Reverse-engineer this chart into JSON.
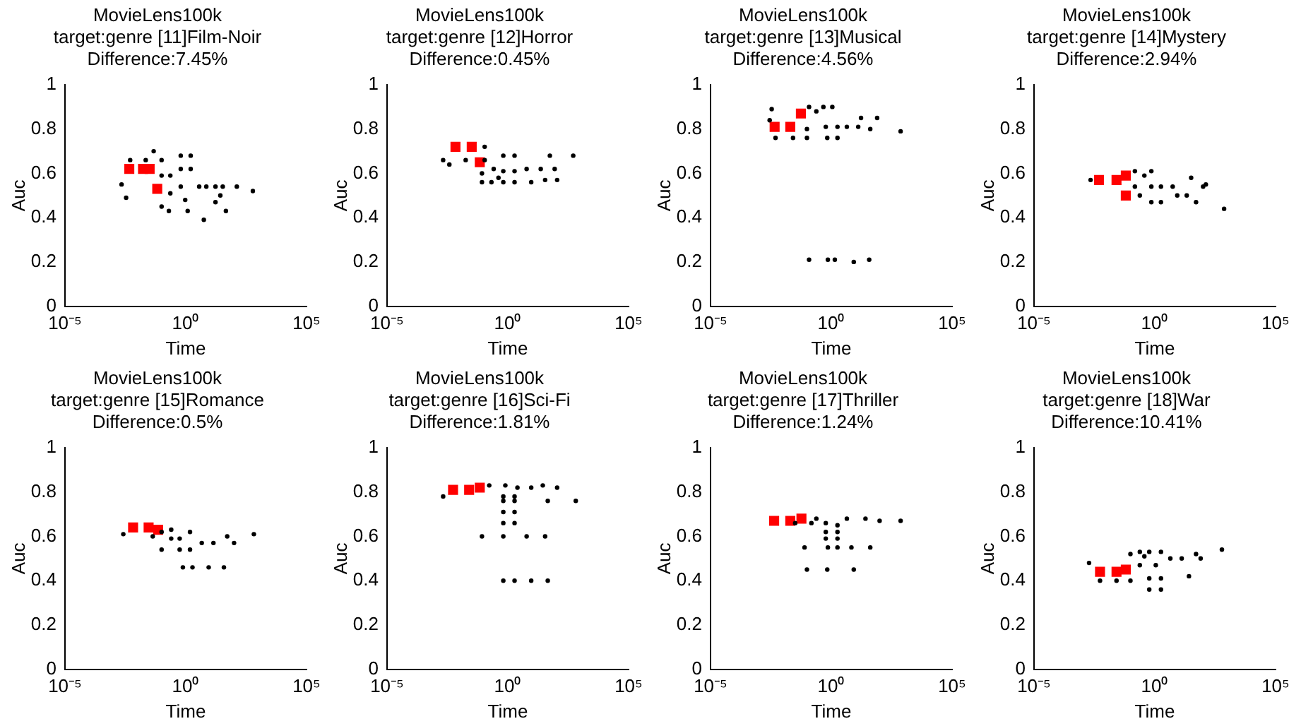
{
  "chart_data": [
    {
      "type": "scatter",
      "title": "MovieLens100k\ntarget:genre [11]Film-Noir\nDifference:7.45%",
      "xlabel": "Time",
      "ylabel": "Auc",
      "log": "x",
      "grid": false,
      "legend": false,
      "xlim": [
        1e-05,
        100000
      ],
      "xticks": [
        {
          "value": 1e-05,
          "label": "10⁻⁵"
        },
        {
          "value": 1,
          "label": "10⁰"
        },
        {
          "value": 100000,
          "label": "10⁵"
        }
      ],
      "ylim": [
        0,
        1
      ],
      "yticks": [
        0,
        0.2,
        0.4,
        0.6,
        0.8,
        1
      ],
      "series": [
        {
          "color": "#000000",
          "marker": "circle",
          "x": [
            0.0022,
            0.0034,
            0.005,
            0.022,
            0.047,
            0.1,
            0.1,
            0.23,
            0.23,
            0.1,
            0.2,
            0.62,
            0.62,
            1.6,
            1.6,
            0.62,
            0.95,
            1.2,
            3.6,
            7.1,
            17,
            34,
            130,
            600,
            5.6,
            17,
            46,
            27
          ],
          "values": [
            0.55,
            0.49,
            0.66,
            0.66,
            0.7,
            0.66,
            0.59,
            0.59,
            0.51,
            0.45,
            0.43,
            0.68,
            0.62,
            0.68,
            0.62,
            0.54,
            0.48,
            0.43,
            0.54,
            0.54,
            0.54,
            0.54,
            0.54,
            0.52,
            0.39,
            0.47,
            0.43,
            0.5
          ]
        },
        {
          "color": "#ff0000",
          "marker": "square",
          "x": [
            0.0046,
            0.017,
            0.032,
            0.066
          ],
          "values": [
            0.62,
            0.62,
            0.62,
            0.53
          ]
        }
      ]
    },
    {
      "type": "scatter",
      "title": "MovieLens100k\ntarget:genre [12]Horror\nDifference:0.45%",
      "xlabel": "Time",
      "ylabel": "Auc",
      "log": "x",
      "grid": false,
      "legend": false,
      "xlim": [
        1e-05,
        100000
      ],
      "xticks": [
        {
          "value": 1e-05,
          "label": "10⁻⁵"
        },
        {
          "value": 1,
          "label": "10⁰"
        },
        {
          "value": 100000,
          "label": "10⁵"
        }
      ],
      "ylim": [
        0,
        1
      ],
      "yticks": [
        0,
        0.2,
        0.4,
        0.6,
        0.8,
        1
      ],
      "series": [
        {
          "color": "#000000",
          "marker": "circle",
          "x": [
            0.0021,
            0.0038,
            0.018,
            0.11,
            0.11,
            0.085,
            0.085,
            0.21,
            0.26,
            0.65,
            0.65,
            0.65,
            1.9,
            1.9,
            1.9,
            6,
            23,
            55,
            87,
            35,
            110,
            510,
            9.3,
            0.41
          ],
          "values": [
            0.66,
            0.64,
            0.66,
            0.72,
            0.66,
            0.6,
            0.56,
            0.56,
            0.62,
            0.68,
            0.61,
            0.56,
            0.68,
            0.61,
            0.56,
            0.62,
            0.62,
            0.68,
            0.62,
            0.57,
            0.57,
            0.68,
            0.56,
            0.58
          ]
        },
        {
          "color": "#ff0000",
          "marker": "square",
          "x": [
            0.0068,
            0.032,
            0.069
          ],
          "values": [
            0.72,
            0.72,
            0.65
          ]
        }
      ]
    },
    {
      "type": "scatter",
      "title": "MovieLens100k\ntarget:genre [13]Musical\nDifference:4.56%",
      "xlabel": "Time",
      "ylabel": "Auc",
      "log": "x",
      "grid": false,
      "legend": false,
      "xlim": [
        1e-05,
        100000
      ],
      "xticks": [
        {
          "value": 1e-05,
          "label": "10⁻⁵"
        },
        {
          "value": 1,
          "label": "10⁰"
        },
        {
          "value": 100000,
          "label": "10⁵"
        }
      ],
      "ylim": [
        0,
        1
      ],
      "yticks": [
        0,
        0.2,
        0.4,
        0.6,
        0.8,
        1
      ],
      "series": [
        {
          "color": "#000000",
          "marker": "circle",
          "x": [
            0.0034,
            0.0049,
            0.026,
            0.098,
            0.12,
            0.24,
            0.47,
            1.1,
            0.098,
            0.59,
            1.8,
            4.4,
            13,
            41,
            17,
            79,
            740,
            0.68,
            1.8,
            0.12,
            0.72,
            1.4,
            8.5,
            37,
            0.0028
          ],
          "values": [
            0.89,
            0.76,
            0.76,
            0.76,
            0.9,
            0.88,
            0.9,
            0.9,
            0.8,
            0.81,
            0.81,
            0.81,
            0.81,
            0.8,
            0.85,
            0.85,
            0.79,
            0.76,
            0.76,
            0.21,
            0.21,
            0.21,
            0.2,
            0.21,
            0.84
          ]
        },
        {
          "color": "#ff0000",
          "marker": "square",
          "x": [
            0.0045,
            0.02,
            0.055
          ],
          "values": [
            0.81,
            0.81,
            0.87
          ]
        }
      ]
    },
    {
      "type": "scatter",
      "title": "MovieLens100k\ntarget:genre [14]Mystery\nDifference:2.94%",
      "xlabel": "Time",
      "ylabel": "Auc",
      "log": "x",
      "grid": false,
      "legend": false,
      "xlim": [
        1e-05,
        100000
      ],
      "xticks": [
        {
          "value": 1e-05,
          "label": "10⁻⁵"
        },
        {
          "value": 1,
          "label": "10⁰"
        },
        {
          "value": 100000,
          "label": "10⁵"
        }
      ],
      "ylim": [
        0,
        1
      ],
      "yticks": [
        0,
        0.2,
        0.4,
        0.6,
        0.8,
        1
      ],
      "series": [
        {
          "color": "#000000",
          "marker": "circle",
          "x": [
            0.0022,
            0.15,
            0.15,
            0.24,
            0.72,
            0.72,
            0.72,
            1.8,
            1.8,
            5.5,
            8.5,
            21,
            32,
            51,
            100,
            740,
            0.37,
            130
          ],
          "values": [
            0.57,
            0.61,
            0.54,
            0.5,
            0.61,
            0.54,
            0.47,
            0.54,
            0.47,
            0.54,
            0.5,
            0.5,
            0.58,
            0.47,
            0.54,
            0.44,
            0.59,
            0.55
          ]
        },
        {
          "color": "#ff0000",
          "marker": "square",
          "x": [
            0.0049,
            0.026,
            0.063,
            0.063
          ],
          "values": [
            0.57,
            0.57,
            0.59,
            0.5
          ]
        }
      ]
    },
    {
      "type": "scatter",
      "title": "MovieLens100k\ntarget:genre [15]Romance\nDifference:0.5%",
      "xlabel": "Time",
      "ylabel": "Auc",
      "log": "x",
      "grid": false,
      "legend": false,
      "xlim": [
        1e-05,
        100000
      ],
      "xticks": [
        {
          "value": 1e-05,
          "label": "10⁻⁵"
        },
        {
          "value": 1,
          "label": "10⁰"
        },
        {
          "value": 100000,
          "label": "10⁵"
        }
      ],
      "ylim": [
        0,
        1
      ],
      "yticks": [
        0,
        0.2,
        0.4,
        0.6,
        0.8,
        1
      ],
      "series": [
        {
          "color": "#000000",
          "marker": "circle",
          "x": [
            0.0026,
            0.1,
            0.1,
            0.25,
            0.25,
            0.56,
            0.56,
            1.5,
            1.5,
            4.6,
            14,
            52,
            100,
            0.76,
            1.9,
            8.9,
            38,
            660,
            0.043
          ],
          "values": [
            0.61,
            0.54,
            0.62,
            0.63,
            0.59,
            0.54,
            0.59,
            0.62,
            0.54,
            0.57,
            0.57,
            0.6,
            0.57,
            0.46,
            0.46,
            0.46,
            0.46,
            0.61,
            0.6
          ]
        },
        {
          "color": "#ff0000",
          "marker": "square",
          "x": [
            0.0066,
            0.029,
            0.072
          ],
          "values": [
            0.64,
            0.64,
            0.63
          ]
        }
      ]
    },
    {
      "type": "scatter",
      "title": "MovieLens100k\ntarget:genre [16]Sci-Fi\nDifference:1.81%",
      "xlabel": "Time",
      "ylabel": "Auc",
      "log": "x",
      "grid": false,
      "legend": false,
      "xlim": [
        1e-05,
        100000
      ],
      "xticks": [
        {
          "value": 1e-05,
          "label": "10⁻⁵"
        },
        {
          "value": 1,
          "label": "10⁰"
        },
        {
          "value": 100000,
          "label": "10⁵"
        }
      ],
      "ylim": [
        0,
        1
      ],
      "yticks": [
        0,
        0.2,
        0.4,
        0.6,
        0.8,
        1
      ],
      "series": [
        {
          "color": "#000000",
          "marker": "circle",
          "x": [
            0.0021,
            0.17,
            0.79,
            2.5,
            9.3,
            28,
            110,
            0.65,
            1.9,
            0.65,
            1.9,
            0.65,
            1.9,
            0.65,
            1.9,
            0.085,
            0.65,
            6,
            35,
            0.65,
            1.9,
            9.3,
            45,
            45,
            650
          ],
          "values": [
            0.78,
            0.83,
            0.83,
            0.82,
            0.82,
            0.83,
            0.82,
            0.78,
            0.78,
            0.76,
            0.76,
            0.71,
            0.71,
            0.66,
            0.66,
            0.6,
            0.6,
            0.6,
            0.6,
            0.4,
            0.4,
            0.4,
            0.4,
            0.76,
            0.76
          ]
        },
        {
          "color": "#ff0000",
          "marker": "square",
          "x": [
            0.0054,
            0.025,
            0.069
          ],
          "values": [
            0.81,
            0.81,
            0.82
          ]
        }
      ]
    },
    {
      "type": "scatter",
      "title": "MovieLens100k\ntarget:genre [17]Thriller\nDifference:1.24%",
      "xlabel": "Time",
      "ylabel": "Auc",
      "log": "x",
      "grid": false,
      "legend": false,
      "xlim": [
        1e-05,
        100000
      ],
      "xticks": [
        {
          "value": 1e-05,
          "label": "10⁻⁵"
        },
        {
          "value": 1,
          "label": "10⁰"
        },
        {
          "value": 100000,
          "label": "10⁵"
        }
      ],
      "ylim": [
        0,
        1
      ],
      "yticks": [
        0,
        0.2,
        0.4,
        0.6,
        0.8,
        1
      ],
      "series": [
        {
          "color": "#000000",
          "marker": "circle",
          "x": [
            0.15,
            0.24,
            0.59,
            0.59,
            0.59,
            1.8,
            1.8,
            1.8,
            4.4,
            26,
            100,
            740,
            0.078,
            0.72,
            1.8,
            6.8,
            41,
            0.098,
            0.68,
            8.5,
            0.032
          ],
          "values": [
            0.66,
            0.68,
            0.66,
            0.62,
            0.59,
            0.65,
            0.62,
            0.59,
            0.68,
            0.68,
            0.67,
            0.67,
            0.55,
            0.55,
            0.55,
            0.55,
            0.55,
            0.45,
            0.45,
            0.45,
            0.66
          ]
        },
        {
          "color": "#ff0000",
          "marker": "square",
          "x": [
            0.0043,
            0.02,
            0.058
          ],
          "values": [
            0.67,
            0.67,
            0.68
          ]
        }
      ]
    },
    {
      "type": "scatter",
      "title": "MovieLens100k\ntarget:genre [18]War\nDifference:10.41%",
      "xlabel": "Time",
      "ylabel": "Auc",
      "log": "x",
      "grid": false,
      "legend": false,
      "xlim": [
        1e-05,
        100000
      ],
      "xticks": [
        {
          "value": 1e-05,
          "label": "10⁻⁵"
        },
        {
          "value": 1,
          "label": "10⁰"
        },
        {
          "value": 100000,
          "label": "10⁵"
        }
      ],
      "ylim": [
        0,
        1
      ],
      "yticks": [
        0,
        0.2,
        0.4,
        0.6,
        0.8,
        1
      ],
      "series": [
        {
          "color": "#000000",
          "marker": "circle",
          "x": [
            0.0019,
            0.0054,
            0.026,
            0.098,
            0.098,
            0.24,
            0.24,
            0.59,
            0.59,
            0.59,
            1.8,
            1.8,
            1.8,
            1.1,
            4.4,
            13,
            51,
            79,
            26,
            600,
            0.37
          ],
          "values": [
            0.48,
            0.4,
            0.4,
            0.4,
            0.52,
            0.53,
            0.47,
            0.53,
            0.41,
            0.36,
            0.53,
            0.41,
            0.36,
            0.47,
            0.5,
            0.5,
            0.52,
            0.5,
            0.42,
            0.54,
            0.51
          ]
        },
        {
          "color": "#ff0000",
          "marker": "square",
          "x": [
            0.0054,
            0.026,
            0.063
          ],
          "values": [
            0.44,
            0.44,
            0.45
          ]
        }
      ]
    }
  ]
}
